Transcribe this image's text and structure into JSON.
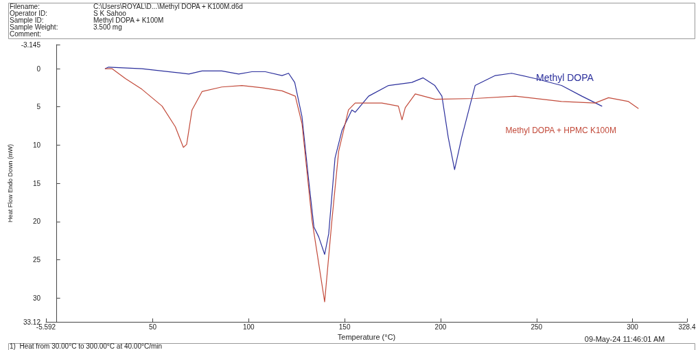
{
  "chart_data": {
    "type": "line",
    "xlabel": "Temperature (°C)",
    "ylabel": "Heat Flow Endo Down (mW)",
    "annotations": [
      "Filename:",
      "C:\\Users\\ROYAL\\D...\\Methyl DOPA + K100M.d6d",
      "Operator ID:",
      "S K Sahoo",
      "Sample ID:",
      "Methyl DOPA + K100M",
      "Sample Weight:",
      "3.500 mg",
      "Comment:",
      "09-May-24 11:46:01 AM",
      "1)  Heat from 30.00°C to 300.00°C at 40.00°C/min"
    ],
    "xlim": [
      -5.592,
      328.4
    ],
    "xticks": [
      -5.592,
      50,
      100,
      150,
      200,
      250,
      300,
      328.4
    ],
    "ylim": [
      33.12,
      -3.145
    ],
    "yticks": [
      -3.145,
      0,
      5,
      10,
      15,
      20,
      25,
      30,
      33.12
    ],
    "grid": false,
    "legend": false,
    "marker": "none",
    "line_style": "solid",
    "series": [
      {
        "name": "Methyl DOPA",
        "color": "#2b2f9c",
        "x": [
          25.3,
          27,
          44.4,
          65.3,
          68.8,
          75.7,
          86,
          94.8,
          101.7,
          108.7,
          117.4,
          120.8,
          124,
          127.8,
          131.2,
          134,
          136.5,
          139.6,
          141.7,
          145,
          148.6,
          153.8,
          155.5,
          162.5,
          172.9,
          185,
          190.9,
          197,
          200.7,
          204,
          207.3,
          211,
          218,
          228.5,
          237,
          249.3,
          263,
          273.6,
          284
        ],
        "values": [
          0,
          -0.2,
          0,
          0.6,
          0.7,
          0.3,
          0.3,
          0.7,
          0.4,
          0.4,
          0.9,
          0.6,
          1.8,
          6.3,
          14.4,
          20.7,
          22,
          24.3,
          21.6,
          11.7,
          8.1,
          5.4,
          5.7,
          3.6,
          2.2,
          1.8,
          1.2,
          2.2,
          3.6,
          9,
          13.2,
          9,
          2.2,
          0.9,
          0.6,
          1.3,
          2.2,
          3.6,
          4.9
        ]
      },
      {
        "name": "Methyl DOPA + HPMC K100M",
        "color": "#c24a3a",
        "x": [
          25.3,
          28.8,
          35.8,
          44.4,
          54.9,
          61.8,
          66,
          67.7,
          70.5,
          75.7,
          86,
          96.5,
          107,
          117.4,
          124.3,
          127.8,
          133,
          139.6,
          143.4,
          146.9,
          152,
          155.5,
          169.4,
          178,
          179.9,
          181.6,
          186.8,
          197.2,
          218,
          238.9,
          263,
          280.5,
          287.5,
          297.9,
          303
        ],
        "values": [
          0,
          0,
          1.3,
          2.7,
          4.9,
          7.6,
          10.3,
          9.9,
          5.4,
          3,
          2.4,
          2.2,
          2.5,
          2.9,
          3.6,
          7.2,
          19.8,
          30.5,
          19.8,
          10.8,
          5.4,
          4.5,
          4.5,
          4.9,
          6.7,
          5.1,
          3.3,
          4,
          3.9,
          3.6,
          4.3,
          4.5,
          3.8,
          4.3,
          5.2
        ]
      }
    ]
  }
}
